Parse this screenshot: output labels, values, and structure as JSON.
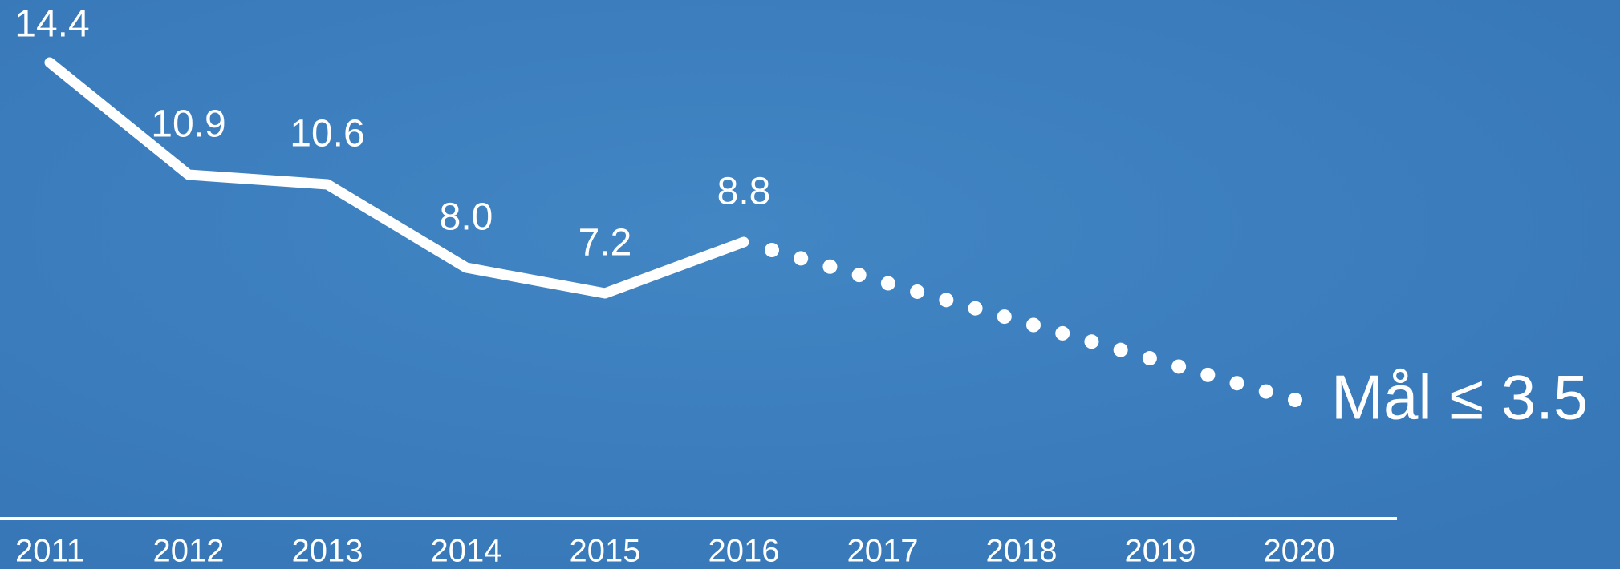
{
  "chart_data": {
    "type": "line",
    "categories": [
      "2011",
      "2012",
      "2013",
      "2014",
      "2015",
      "2016",
      "2017",
      "2018",
      "2019",
      "2020"
    ],
    "series": [
      {
        "color": "#ffffff",
        "values": [
          14.4,
          10.9,
          10.6,
          8.0,
          7.2,
          8.8,
          null,
          null,
          null,
          null
        ],
        "value_labels": [
          "14.4",
          "10.9",
          "10.6",
          "8.0",
          "7.2",
          "8.8",
          null,
          null,
          null,
          null
        ]
      }
    ],
    "target": {
      "label": "Mål ≤ 3.5",
      "value": 3.5
    }
  }
}
